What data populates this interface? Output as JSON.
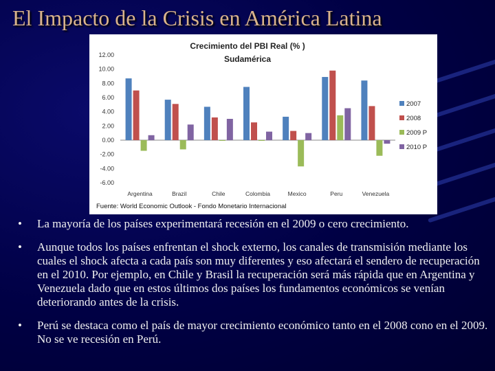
{
  "slide": {
    "title": "El Impacto de la Crisis en América Latina",
    "background_color": "#00003a",
    "title_color": "#d9b38c",
    "bullet_symbol": "•",
    "bullets": [
      "La mayoría de los países experimentará recesión en el 2009 o cero crecimiento.",
      "Aunque todos los países enfrentan el shock externo, los canales de transmisión mediante los cuales el shock afecta a cada país son muy diferentes y eso afectará el sendero de recuperación en el 2010. Por ejemplo, en Chile y Brasil la recuperación será más rápida que en Argentina y Venezuela dado que en estos últimos dos países los fundamentos económicos se venían deteriorando antes de la crisis.",
      "Perú se destaca como el país de mayor crecimiento económico tanto en el 2008 cono en el 2009. No se ve recesión en Perú."
    ]
  },
  "chart_data": {
    "type": "bar",
    "title": "Crecimiento del PBI Real (% )",
    "subtitle": "Sudamérica",
    "source": "Fuente: World Economic Outlook - Fondo Monetario Internacional",
    "categories": [
      "Argentina",
      "Brazil",
      "Chile",
      "Colombia",
      "Mexico",
      "Peru",
      "Venezuela"
    ],
    "y_ticks": [
      "12.00",
      "10.00",
      "8.00",
      "6.00",
      "4.00",
      "2.00",
      "0.00",
      "-2.00",
      "-4.00",
      "-6.00"
    ],
    "ylim": [
      -6,
      12
    ],
    "grid": false,
    "legend_position": "right",
    "series": [
      {
        "name": "2007",
        "color": "#4f81bd",
        "values": [
          8.7,
          5.7,
          4.7,
          7.5,
          3.3,
          8.9,
          8.4
        ]
      },
      {
        "name": "2008",
        "color": "#c0504d",
        "values": [
          7.0,
          5.1,
          3.2,
          2.5,
          1.3,
          9.8,
          4.8
        ]
      },
      {
        "name": "2009 P",
        "color": "#9bbb59",
        "values": [
          -1.5,
          -1.3,
          -0.1,
          -0.1,
          -3.7,
          3.5,
          -2.2
        ]
      },
      {
        "name": "2010 P",
        "color": "#8064a2",
        "values": [
          0.7,
          2.2,
          3.0,
          1.2,
          1.0,
          4.5,
          -0.5
        ]
      }
    ]
  }
}
